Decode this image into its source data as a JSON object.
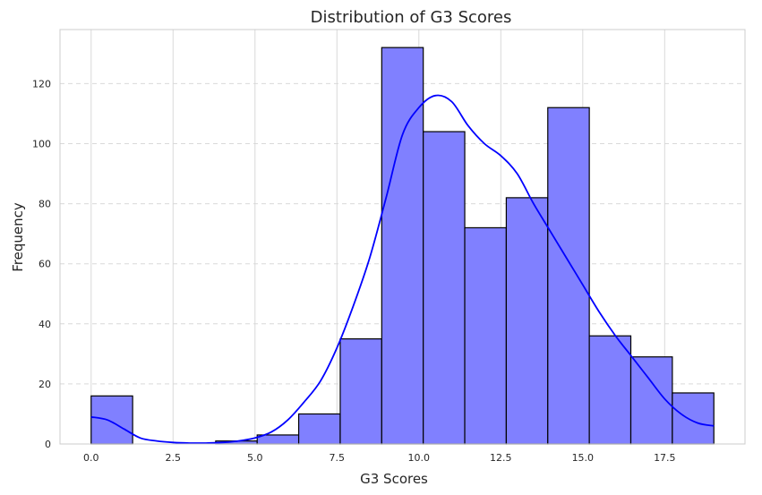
{
  "chart_data": {
    "type": "bar",
    "title": "Distribution of G3 Scores",
    "xlabel": "G3 Scores",
    "ylabel": "Frequency",
    "xlim": [
      -0.95,
      19.95
    ],
    "ylim": [
      0,
      138
    ],
    "x_ticks": [
      0.0,
      2.5,
      5.0,
      7.5,
      10.0,
      12.5,
      15.0,
      17.5
    ],
    "x_tick_labels": [
      "0.0",
      "2.5",
      "5.0",
      "7.5",
      "10.0",
      "12.5",
      "15.0",
      "17.5"
    ],
    "y_ticks": [
      0,
      20,
      40,
      60,
      80,
      100,
      120
    ],
    "y_tick_labels": [
      "0",
      "20",
      "40",
      "60",
      "80",
      "100",
      "120"
    ],
    "grid": {
      "x": "solid",
      "y": "dashed"
    },
    "bin_edges": [
      0,
      1.2667,
      2.5333,
      3.8,
      5.0667,
      6.3333,
      7.6,
      8.8667,
      10.1333,
      11.4,
      12.6667,
      13.9333,
      15.2,
      16.4667,
      17.7333,
      19.0
    ],
    "bar_values": [
      16,
      0,
      0,
      1,
      3,
      10,
      35,
      132,
      104,
      72,
      82,
      112,
      36,
      29,
      17
    ],
    "bar_color": "#8080ff",
    "bar_edge_color": "#000000",
    "kde": {
      "color": "#0000ff",
      "x": [
        0,
        0.5,
        1.0,
        1.5,
        2.0,
        2.5,
        3.0,
        3.5,
        4.0,
        4.5,
        5.0,
        5.5,
        6.0,
        6.5,
        7.0,
        7.5,
        8.0,
        8.5,
        9.0,
        9.5,
        10.0,
        10.5,
        11.0,
        11.5,
        12.0,
        12.5,
        13.0,
        13.5,
        14.0,
        14.5,
        15.0,
        15.5,
        16.0,
        16.5,
        17.0,
        17.5,
        18.0,
        18.5,
        19.0
      ],
      "y": [
        9,
        8,
        5,
        2,
        1,
        0.5,
        0.3,
        0.3,
        0.5,
        1,
        2,
        4,
        8,
        14,
        21,
        32,
        46,
        62,
        82,
        103,
        112,
        116,
        114,
        106,
        100,
        96,
        90,
        80,
        71,
        62,
        53,
        44,
        36,
        29,
        22,
        15,
        10,
        7,
        6
      ]
    }
  }
}
